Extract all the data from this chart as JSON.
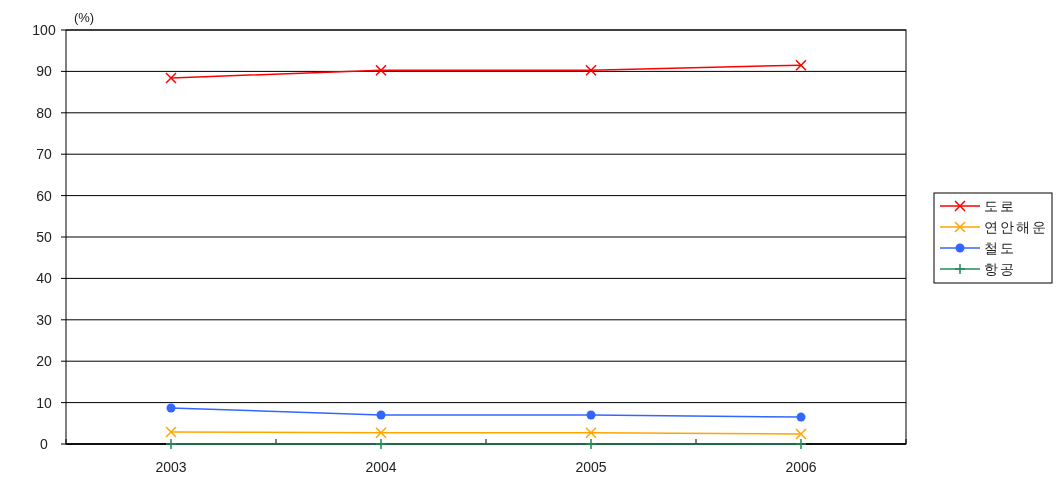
{
  "chart_data": {
    "type": "line",
    "ylabel": "(%)",
    "categories": [
      "2003",
      "2004",
      "2005",
      "2006"
    ],
    "series": [
      {
        "name": "도로",
        "color": "#ff0000",
        "marker": "cross",
        "values": [
          88.4,
          90.3,
          90.3,
          91.5
        ]
      },
      {
        "name": "연안해운",
        "color": "#ffa500",
        "marker": "cross",
        "values": [
          2.9,
          2.7,
          2.7,
          2.4
        ]
      },
      {
        "name": "철도",
        "color": "#3366ff",
        "marker": "circle",
        "values": [
          8.7,
          7.0,
          7.0,
          6.5
        ]
      },
      {
        "name": "항공",
        "color": "#228b57",
        "marker": "plus",
        "values": [
          0,
          0,
          0,
          0
        ]
      }
    ],
    "ylim": [
      0,
      100
    ],
    "yticks": [
      0,
      10,
      20,
      30,
      40,
      50,
      60,
      70,
      80,
      90,
      100
    ],
    "grid": "y",
    "legend": "right"
  }
}
